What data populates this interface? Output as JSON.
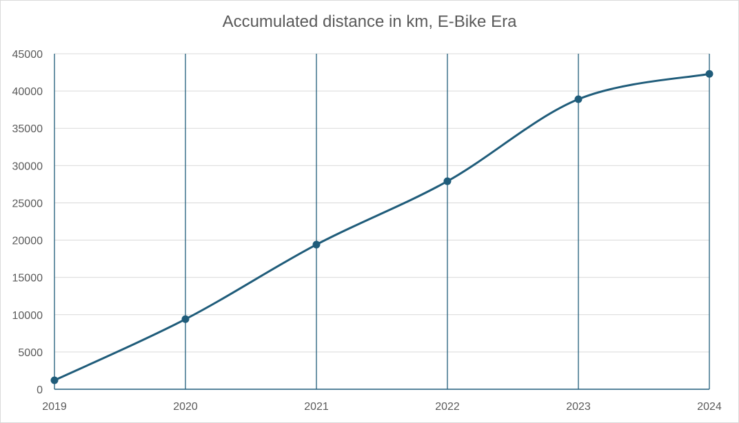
{
  "chart_data": {
    "type": "line",
    "title": "Accumulated distance in km, E-Bike Era",
    "xlabel": "",
    "ylabel": "",
    "categories": [
      "2019",
      "2020",
      "2021",
      "2022",
      "2023",
      "2024"
    ],
    "series": [
      {
        "name": "Accumulated distance (km)",
        "values": [
          1200,
          9400,
          19400,
          27900,
          38900,
          42300
        ],
        "color": "#1f5c7a"
      }
    ],
    "ylim": [
      0,
      45000
    ],
    "y_ticks": [
      "0",
      "5000",
      "10000",
      "15000",
      "20000",
      "25000",
      "30000",
      "35000",
      "40000",
      "45000"
    ],
    "grid": {
      "horizontal": true,
      "vertical": true
    },
    "colors": {
      "line": "#1f5c7a",
      "marker": "#1f5c7a",
      "vertical_grid": "#1f5c7a",
      "horizontal_grid": "#d9d9d9",
      "text": "#595959"
    }
  }
}
